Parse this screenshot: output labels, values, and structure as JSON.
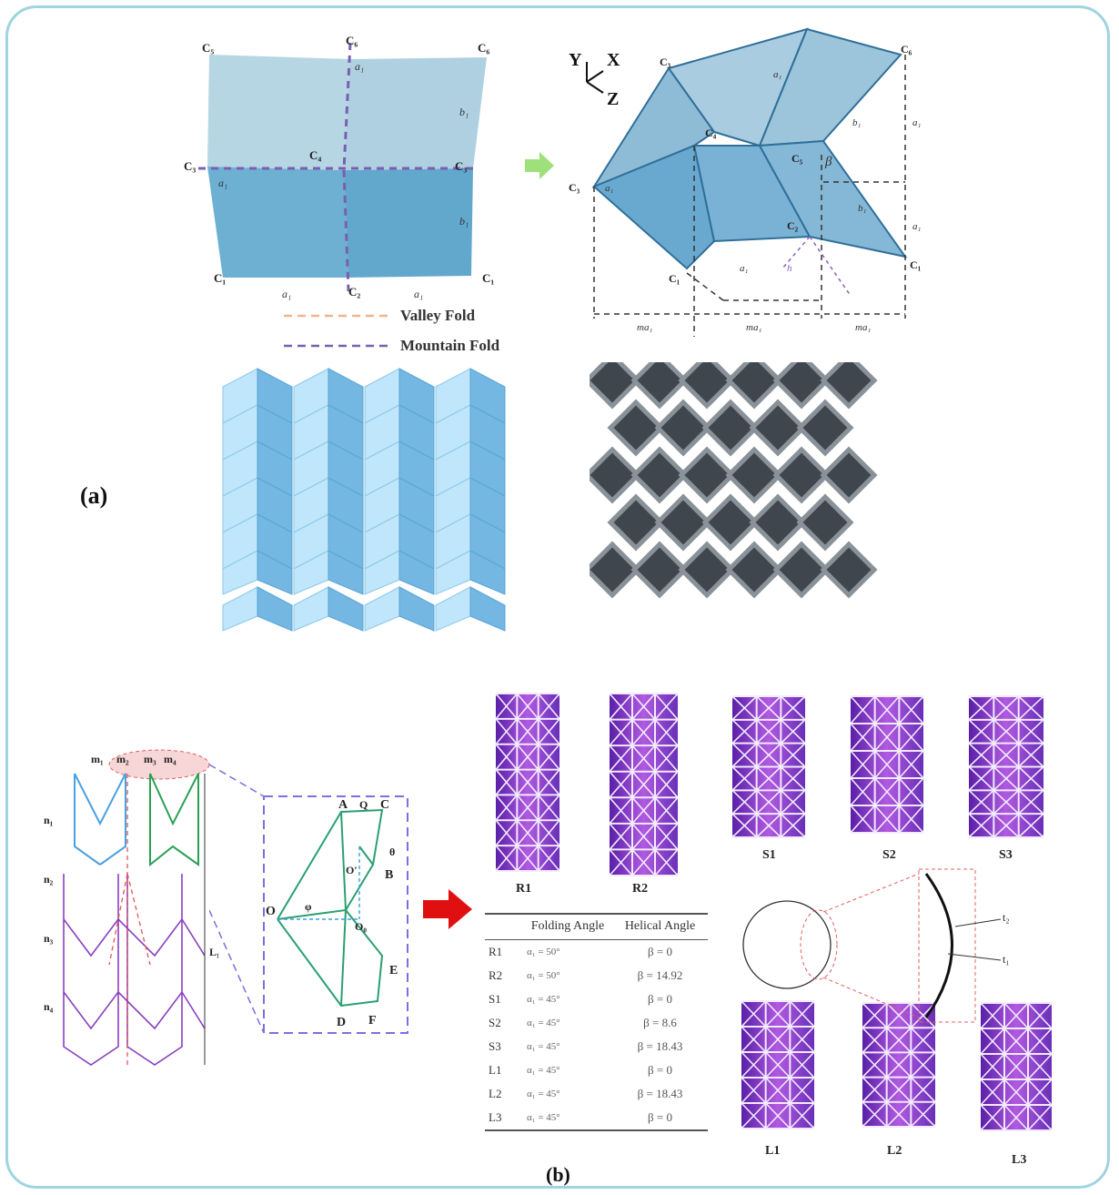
{
  "panel_a": {
    "label": "(a)",
    "legend": {
      "valley": "Valley Fold",
      "mountain": "Mountain Fold"
    },
    "flat_vertex_labels": [
      "C₅",
      "C₆",
      "C₃",
      "C₄",
      "C₁",
      "C₂",
      "C₁",
      "C₂",
      "C₃"
    ],
    "flat_edge_labels": [
      "a₁",
      "a₁",
      "a₁",
      "b₁",
      "b₁",
      "a₁"
    ],
    "axis_labels": [
      "Y",
      "X",
      "Z"
    ],
    "folded_labels": [
      "C₃",
      "C₄",
      "C₅",
      "C₆",
      "C₂",
      "C₁",
      "a₁",
      "b₁",
      "b₁",
      "a₁",
      "a₁",
      "β",
      "h",
      "ma₁",
      "ma₁",
      "ma₁"
    ]
  },
  "panel_b": {
    "label": "(b)",
    "diagram_labels": [
      "m₁",
      "m₂",
      "m₃",
      "m₄",
      "n₁",
      "n₂",
      "n₃",
      "n₄",
      "L₁",
      "A",
      "B",
      "C",
      "D",
      "E",
      "F",
      "O",
      "O′",
      "O₀",
      "φ",
      "Q",
      "θ"
    ],
    "samples_top": [
      "R1",
      "R2",
      "S1",
      "S2",
      "S3"
    ],
    "samples_bottom": [
      "L1",
      "L2",
      "L3"
    ],
    "thickness_labels": [
      "t₂",
      "t₁"
    ],
    "table": {
      "headers": [
        "",
        "Folding Angle",
        "Helical Angle"
      ],
      "rows": [
        [
          "R1",
          "α₁ = 50°",
          "β = 0"
        ],
        [
          "R2",
          "α₁ = 50°",
          "β = 14.92"
        ],
        [
          "S1",
          "α₁ = 45°",
          "β = 0"
        ],
        [
          "S2",
          "α₁ = 45°",
          "β = 8.6"
        ],
        [
          "S3",
          "α₁ = 45°",
          "β = 18.43"
        ],
        [
          "L1",
          "α₁ = 45°",
          "β = 0"
        ],
        [
          "L2",
          "α₁ = 45°",
          "β = 18.43"
        ],
        [
          "L3",
          "α₁ = 45°",
          "β = 0"
        ]
      ]
    }
  },
  "colors": {
    "frame": "#9fd4e0",
    "panel_light": "#a9cfe0",
    "panel_dark": "#5aa4c8",
    "lattice": "#6a7178",
    "purple": "#7a3fc0",
    "red_arrow": "#e01010"
  }
}
